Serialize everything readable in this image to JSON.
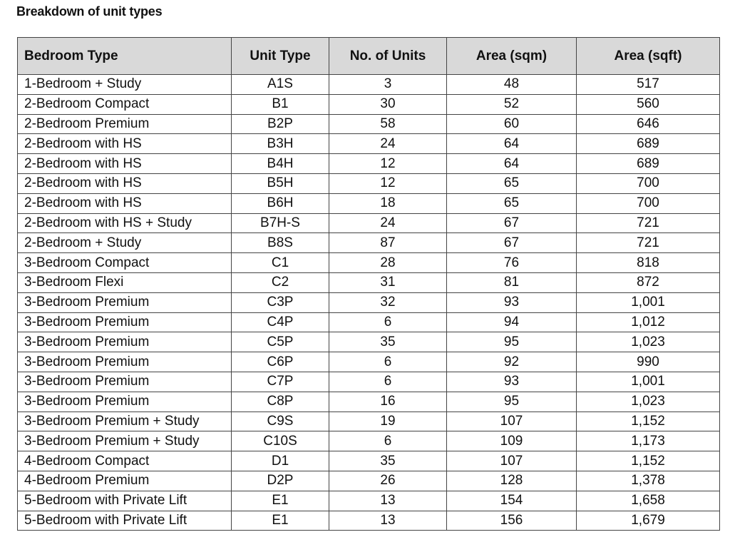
{
  "title": "Breakdown of unit types",
  "columns": [
    "Bedroom Type",
    "Unit Type",
    "No. of Units",
    "Area (sqm)",
    "Area (sqft)"
  ],
  "header_bg": "#d9d9d9",
  "rows": [
    [
      "1-Bedroom + Study",
      "A1S",
      "3",
      "48",
      "517"
    ],
    [
      "2-Bedroom Compact",
      "B1",
      "30",
      "52",
      "560"
    ],
    [
      "2-Bedroom Premium",
      "B2P",
      "58",
      "60",
      "646"
    ],
    [
      "2-Bedroom with HS",
      "B3H",
      "24",
      "64",
      "689"
    ],
    [
      "2-Bedroom with HS",
      "B4H",
      "12",
      "64",
      "689"
    ],
    [
      "2-Bedroom with HS",
      "B5H",
      "12",
      "65",
      "700"
    ],
    [
      "2-Bedroom with HS",
      "B6H",
      "18",
      "65",
      "700"
    ],
    [
      "2-Bedroom with HS + Study",
      "B7H-S",
      "24",
      "67",
      "721"
    ],
    [
      "2-Bedroom + Study",
      "B8S",
      "87",
      "67",
      "721"
    ],
    [
      "3-Bedroom Compact",
      "C1",
      "28",
      "76",
      "818"
    ],
    [
      "3-Bedroom Flexi",
      "C2",
      "31",
      "81",
      "872"
    ],
    [
      "3-Bedroom Premium",
      "C3P",
      "32",
      "93",
      "1,001"
    ],
    [
      "3-Bedroom Premium",
      "C4P",
      "6",
      "94",
      "1,012"
    ],
    [
      "3-Bedroom Premium",
      "C5P",
      "35",
      "95",
      "1,023"
    ],
    [
      "3-Bedroom Premium",
      "C6P",
      "6",
      "92",
      "990"
    ],
    [
      "3-Bedroom Premium",
      "C7P",
      "6",
      "93",
      "1,001"
    ],
    [
      "3-Bedroom Premium",
      "C8P",
      "16",
      "95",
      "1,023"
    ],
    [
      "3-Bedroom Premium + Study",
      "C9S",
      "19",
      "107",
      "1,152"
    ],
    [
      "3-Bedroom Premium + Study",
      "C10S",
      "6",
      "109",
      "1,173"
    ],
    [
      "4-Bedroom Compact",
      "D1",
      "35",
      "107",
      "1,152"
    ],
    [
      "4-Bedroom Premium",
      "D2P",
      "26",
      "128",
      "1,378"
    ],
    [
      "5-Bedroom with Private Lift",
      "E1",
      "13",
      "154",
      "1,658"
    ],
    [
      "5-Bedroom with Private Lift",
      "E1",
      "13",
      "156",
      "1,679"
    ]
  ]
}
